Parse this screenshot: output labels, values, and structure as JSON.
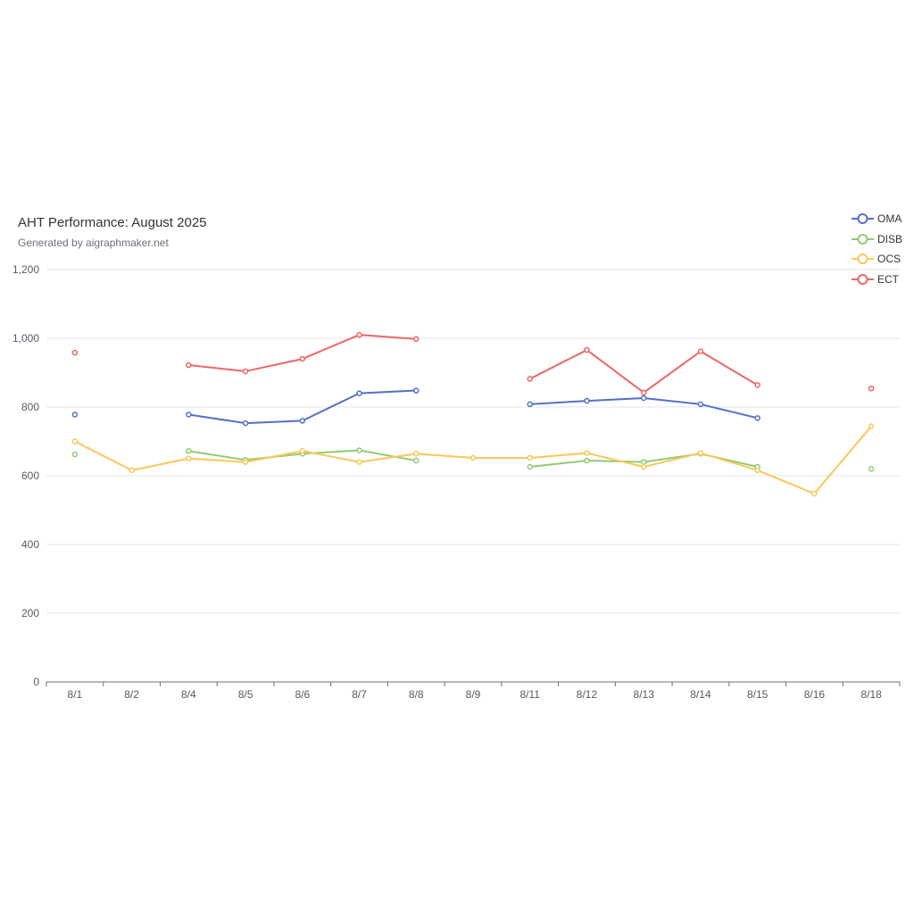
{
  "chart_data": {
    "type": "line",
    "title": "AHT Performance: August 2025",
    "subtitle": "Generated by aigraphmaker.net",
    "categories": [
      "8/1",
      "8/2",
      "8/4",
      "8/5",
      "8/6",
      "8/7",
      "8/8",
      "8/9",
      "8/11",
      "8/12",
      "8/13",
      "8/14",
      "8/15",
      "8/16",
      "8/18"
    ],
    "ylim": [
      0,
      1200
    ],
    "yticks": [
      0,
      200,
      400,
      600,
      800,
      1000,
      1200
    ],
    "ytick_labels": [
      "0",
      "200",
      "400",
      "600",
      "800",
      "1,000",
      "1,200"
    ],
    "grid": true,
    "legend_position": "top-right",
    "series": [
      {
        "name": "OMA",
        "color": "#5470c6",
        "values": [
          778,
          null,
          778,
          753,
          760,
          840,
          848,
          null,
          808,
          818,
          826,
          808,
          768,
          null,
          null
        ]
      },
      {
        "name": "DISB",
        "color": "#91cc75",
        "values": [
          662,
          null,
          672,
          646,
          664,
          674,
          644,
          null,
          626,
          644,
          640,
          664,
          626,
          null,
          620
        ]
      },
      {
        "name": "OCS",
        "color": "#fac858",
        "values": [
          700,
          616,
          650,
          640,
          672,
          640,
          664,
          652,
          652,
          666,
          626,
          666,
          616,
          548,
          744
        ]
      },
      {
        "name": "ECT",
        "color": "#ee6666",
        "values": [
          958,
          null,
          922,
          904,
          940,
          1010,
          998,
          null,
          882,
          966,
          842,
          962,
          864,
          null,
          854
        ]
      }
    ]
  }
}
